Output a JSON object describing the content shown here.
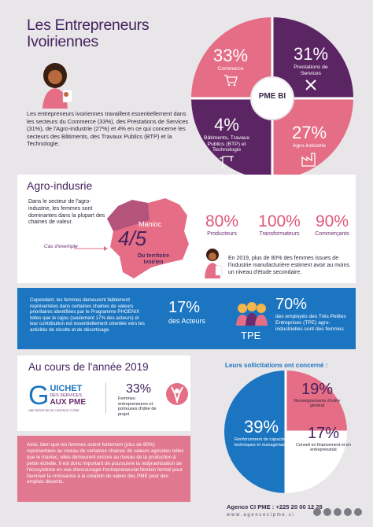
{
  "title": {
    "line1": "Les Entrepreneurs",
    "line2": "Ivoiriennes"
  },
  "intro": "Les entrepreneurs ivoiriennes travaillent essentiellement dans les secteurs du Commerce (33%), des Prestations de Services (31%), de l'Agro-industrie (27%) et 4% en ce qui concerne les secteurs des Bâtiments, des Travaux Publics (BTP) et la Technologie.",
  "sectors": {
    "commerce": {
      "pct": "33%",
      "label": "Commerce"
    },
    "services": {
      "pct": "31%",
      "label": "Prestations de Services"
    },
    "btp": {
      "pct": "4%",
      "label": "Bâtiments, Travaux Publics (BTP) et Technologie"
    },
    "agro": {
      "pct": "27%",
      "label": "Agro-industrie"
    }
  },
  "logo_center": {
    "text": "PME BI"
  },
  "agro_section": {
    "heading": "Agro-indusrie",
    "text": "Dans le secteur de l'agro-industrie, les femmes sont dominantes dans la plupart des chaines de valeur.",
    "example_label": "Cas d'exemple",
    "manioc_label": "Manioc",
    "manioc_fraction": "4/5",
    "manioc_caption": "Du territoire ivoirien",
    "stats": [
      {
        "pct": "80%",
        "label": "Producteurs"
      },
      {
        "pct": "100%",
        "label": "Transformateurs"
      },
      {
        "pct": "90%",
        "label": "Commerçants"
      }
    ],
    "note": "En 2019, plus de 80% des femmes issues de l'industrie manufacturière estiment avoir au moins un niveau d'étude secondaire."
  },
  "blue_band": {
    "text": "Cependant, les femmes demeurent faiblement représentées dans certaines chaines de valeurs prioritaires identifiées par le Programme PHOENIX telles que le cajou (seulement 17% des acteurs) et leur contribution est essentiellement orientée vers les activités de récolte et de décorticage.",
    "pct1": "17%",
    "pct1_label": "des Acteurs",
    "tpe_label": "TPE",
    "pct2": "70%",
    "pct2_label": "des employés des Très Petites Entreprises (TPE) agro-industrielles sont des femmes"
  },
  "year_section": {
    "heading": "Au cours de l'année 2019",
    "guichet": {
      "line1": "UICHET",
      "line2": "DES SERVICES",
      "line3": "AUX PME",
      "letter": "G",
      "tagline": "UNE INITIATIVE DE L'AGENCE CI PME"
    },
    "pct": "33%",
    "pct_label": "Femmes entrepreneures et porteuses d'idée de projet"
  },
  "solicitations": {
    "heading": "Leurs sollicitations ont concerné :",
    "items": [
      {
        "pct": "19%",
        "label": "Renseignements d'ordre général"
      },
      {
        "pct": "39%",
        "label": "Renforcement de capacités techniques et managériales"
      },
      {
        "pct": "17%",
        "label": "Conseil en financement et en entreprenariat"
      }
    ]
  },
  "conclusion": "Ainsi, bien que les femmes soient fortement (plus de 80%) représentées au niveau de certaines chaines de valeurs agricoles telles que le manioc, elles demeurent encore au niveau de la production à petite échelle. Il est donc important de poursuivre la redynamisation de l'écosystème en vue d'encourager l'entrepreneuriat féminin formel pour favoriser la croissance à la création de valeur des PME pour des emplois décents.",
  "footer": {
    "agency": "Agence CI PME : +225 20 00 12 28",
    "url": "w w w . a g e n c e c i p m e . c i"
  },
  "colors": {
    "purple": "#5b2463",
    "pink": "#e56e86",
    "blue": "#1b75c0",
    "bg": "#e9e6ea"
  }
}
